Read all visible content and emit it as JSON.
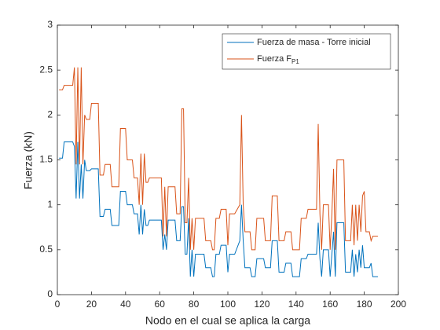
{
  "chart_data": {
    "type": "line",
    "xlabel": "Nodo en el cual se aplica la carga",
    "ylabel": "Fuerza (kN)",
    "xlim": [
      0,
      200
    ],
    "xticks": [
      0,
      20,
      40,
      60,
      80,
      100,
      120,
      140,
      160,
      180,
      200
    ],
    "ylim": [
      0,
      3
    ],
    "yticks": [
      0,
      0.5,
      1,
      1.5,
      2,
      2.5,
      3
    ],
    "legend_position": "northeast",
    "x": [
      1,
      3,
      4,
      9,
      10,
      11,
      12,
      13,
      14,
      15,
      16,
      17,
      19,
      20,
      24,
      25,
      27,
      28,
      31,
      32,
      36,
      37,
      40,
      41,
      44,
      45,
      47,
      48,
      49,
      50,
      51,
      52,
      53,
      54,
      58,
      61,
      62,
      63,
      64,
      65,
      69,
      70,
      72,
      73,
      74,
      75,
      76,
      77,
      78,
      79,
      80,
      81,
      86,
      87,
      90,
      91,
      92,
      93,
      95,
      96,
      99,
      100,
      101,
      104,
      107,
      108,
      109,
      110,
      113,
      114,
      116,
      117,
      121,
      122,
      125,
      126,
      129,
      130,
      133,
      134,
      137,
      138,
      142,
      143,
      146,
      147,
      152,
      153,
      154,
      155,
      156,
      159,
      160,
      161,
      162,
      163,
      164,
      165,
      168,
      169,
      172,
      173,
      174,
      175,
      176,
      177,
      178,
      179,
      180,
      181,
      183,
      184,
      185,
      188
    ],
    "series": [
      {
        "name": "Fuerza de masa - Torre inicial",
        "color": "#0072BD",
        "values": [
          1.52,
          1.52,
          1.7,
          1.7,
          1.65,
          1.07,
          1.7,
          1.07,
          1.45,
          1.07,
          1.5,
          1.38,
          1.38,
          1.4,
          1.4,
          0.87,
          0.87,
          0.95,
          0.95,
          0.77,
          0.77,
          1.15,
          1.15,
          1.0,
          1.0,
          0.9,
          0.9,
          0.67,
          1.0,
          0.67,
          0.95,
          0.77,
          0.77,
          0.83,
          0.83,
          0.83,
          0.5,
          0.67,
          0.5,
          0.83,
          0.83,
          0.6,
          0.6,
          0.98,
          0.98,
          0.45,
          0.45,
          0.85,
          0.2,
          0.5,
          0.2,
          0.45,
          0.45,
          0.3,
          0.3,
          0.2,
          0.2,
          0.45,
          0.45,
          0.55,
          0.55,
          0.25,
          0.45,
          0.45,
          0.6,
          1.0,
          0.6,
          0.3,
          0.3,
          0.2,
          0.2,
          0.4,
          0.4,
          0.3,
          0.3,
          0.6,
          0.6,
          0.25,
          0.25,
          0.35,
          0.35,
          0.2,
          0.2,
          0.4,
          0.4,
          0.45,
          0.45,
          0.8,
          0.4,
          0.2,
          0.5,
          0.5,
          0.2,
          0.45,
          0.7,
          0.2,
          0.8,
          0.8,
          0.8,
          0.25,
          0.25,
          0.5,
          0.2,
          0.45,
          0.25,
          0.5,
          0.3,
          0.55,
          0.3,
          0.3,
          0.3,
          0.35,
          0.2,
          0.2
        ]
      },
      {
        "name": "Fuerza F",
        "name_sub": "P1",
        "color": "#D95319",
        "values": [
          2.28,
          2.28,
          2.33,
          2.33,
          2.53,
          1.45,
          2.53,
          1.45,
          2.53,
          1.45,
          2.0,
          1.95,
          1.95,
          2.13,
          2.13,
          1.33,
          1.33,
          1.45,
          1.45,
          1.2,
          1.2,
          1.85,
          1.85,
          1.5,
          1.5,
          1.3,
          1.3,
          1.0,
          1.57,
          1.0,
          1.57,
          1.25,
          1.25,
          1.3,
          1.3,
          1.3,
          0.65,
          1.2,
          0.65,
          1.2,
          1.2,
          0.9,
          0.9,
          2.07,
          2.07,
          0.8,
          0.8,
          1.3,
          0.5,
          0.85,
          0.5,
          0.85,
          0.85,
          0.6,
          0.6,
          0.5,
          0.5,
          0.85,
          0.85,
          0.95,
          0.95,
          0.55,
          0.9,
          0.9,
          1.0,
          2.0,
          1.0,
          0.7,
          0.7,
          0.5,
          0.5,
          0.85,
          0.85,
          0.6,
          0.6,
          1.1,
          1.1,
          0.6,
          0.6,
          0.7,
          0.7,
          0.5,
          0.5,
          0.85,
          0.85,
          0.95,
          0.95,
          1.9,
          0.9,
          0.5,
          1.0,
          1.0,
          0.5,
          0.9,
          1.4,
          0.5,
          1.5,
          1.5,
          1.5,
          0.6,
          0.6,
          1.0,
          0.55,
          1.0,
          0.6,
          1.0,
          0.7,
          1.1,
          1.15,
          0.7,
          0.7,
          0.6,
          0.65,
          0.65
        ]
      }
    ]
  }
}
